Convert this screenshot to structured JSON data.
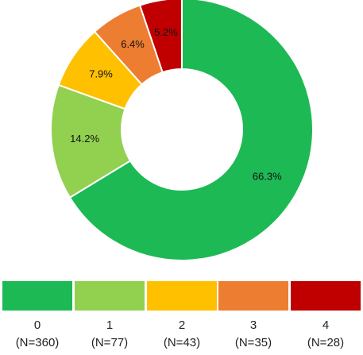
{
  "chart_data": {
    "type": "pie",
    "donut": true,
    "slices": [
      {
        "category": "0",
        "count_label": "(N=360)",
        "percent": 66.3,
        "label": "66.3%",
        "color": "#1db954"
      },
      {
        "category": "1",
        "count_label": "(N=77)",
        "percent": 14.2,
        "label": "14.2%",
        "color": "#92d050"
      },
      {
        "category": "2",
        "count_label": "(N=43)",
        "percent": 7.9,
        "label": "7.9%",
        "color": "#ffc000"
      },
      {
        "category": "3",
        "count_label": "(N=35)",
        "percent": 6.4,
        "label": "6.4%",
        "color": "#ed7d31"
      },
      {
        "category": "4",
        "count_label": "(N=28)",
        "percent": 5.2,
        "label": "5.2%",
        "color": "#c00000"
      }
    ],
    "legend_position": "bottom"
  }
}
